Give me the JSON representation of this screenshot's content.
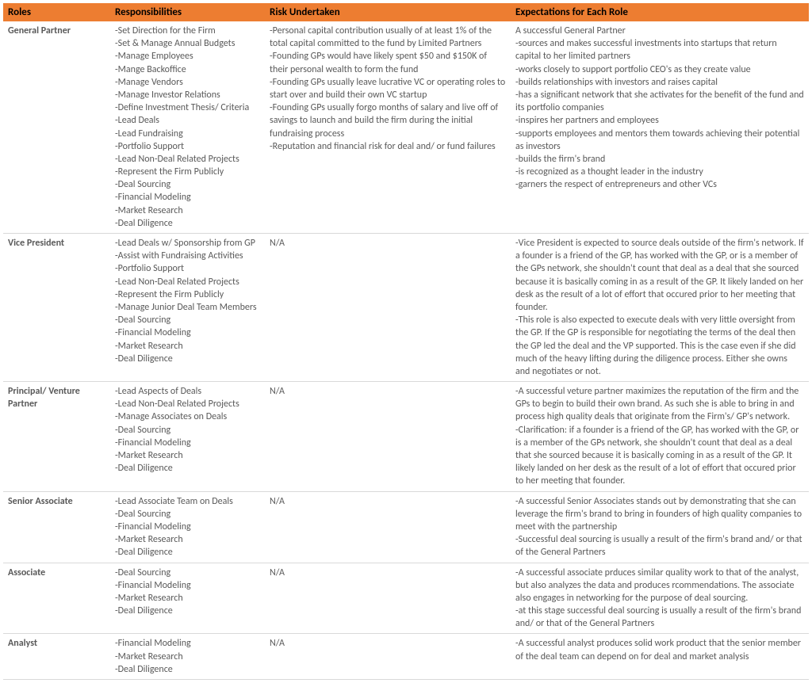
{
  "header_bg": "#ed7d31",
  "header_text_color": "#000000",
  "body_text_color": "#595959",
  "columns": [
    "Roles",
    "Responsibilities",
    "Risk Undertaken",
    "Expectations for Each Role"
  ],
  "rows": [
    {
      "role": "General Partner",
      "responsibilities": [
        "-Set Direction for the Firm",
        "-Set & Manage Annual Budgets",
        "-Manage Employees",
        "-Mange Backoffice",
        "-Manage Vendors",
        "-Manage Investor Relations",
        "-Define Investment Thesis/ Criteria",
        "-Lead Deals",
        "-Lead Fundraising",
        "-Portfolio Support",
        "-Lead Non-Deal Related Projects",
        "-Represent the Firm Publicly",
        "-Deal Sourcing",
        "-Financial Modeling",
        "-Market Research",
        "-Deal Diligence"
      ],
      "risk": [
        "-Personal capital contribution usually of at least 1% of the total capital committed to the fund by Limited Partners",
        "-Founding GPs would have likely spent $50 and $150K of their personal wealth to form the fund",
        "-Founding GPs usually leave lucrative VC or operating roles to start over and build their own VC startup",
        "-Founding GPs usually forgo months of salary and live off of savings to launch and build the firm during the initial fundraising process",
        "-Reputation and financial risk for deal and/ or fund failures"
      ],
      "expectations": [
        "A successful General Partner",
        "-sources and makes successful investments into startups that return capital to her limited partners",
        "-works closely to support portfolio CEO's as they create value",
        "-builds relationships with investors and raises capital",
        "-has a significant network that she activates for the benefit of the fund and its portfolio companies",
        "-inspires her partners and employees",
        "-supports employees and mentors them towards achieving their potential as investors",
        "-builds the firm's brand",
        "-is recognized as a thought leader in the industry",
        "-garners the respect of entrepreneurs and other VCs"
      ]
    },
    {
      "role": "Vice President",
      "responsibilities": [
        "-Lead Deals w/ Sponsorship from GP",
        "-Assist with Fundraising Activities",
        "-Portfolio Support",
        "-Lead Non-Deal Related Projects",
        "-Represent the Firm Publicly",
        "-Manage Junior Deal Team Members",
        "-Deal Sourcing",
        "-Financial Modeling",
        "-Market Research",
        "-Deal Diligence"
      ],
      "risk": [
        "N/A"
      ],
      "expectations": [
        "-Vice President is expected to source deals outside of the firm's network.  If a founder is a friend of the GP, has worked with the GP, or is a member of the GPs network, she shouldn't count that deal as a deal that she sourced because it is basically coming in as a result of the GP.  It likely landed on her desk as the result of a lot of effort that occured prior to her meeting that founder.",
        "-This role is also expected to execute deals with very little oversight from the GP.  If the GP is responsible for negotiating the terms of the deal then the GP led the deal and the VP supported.  This is the case even if she did much of the heavy lifting during the diligence process.  Either she owns and negotiates or not."
      ]
    },
    {
      "role": "Principal/ Venture Partner",
      "responsibilities": [
        "-Lead Aspects of Deals",
        "-Lead Non-Deal Related Projects",
        "-Manage Associates on Deals",
        "-Deal Sourcing",
        "-Financial Modeling",
        "-Market Research",
        "-Deal Diligence"
      ],
      "risk": [
        "N/A"
      ],
      "expectations": [
        "-A successful veture partner maximizes the reputation of the firm and the GPs to begin to build their own brand.  As such she is able to bring in and process high quality deals that originate from the Firm's/ GP's network.",
        "-Clarification: if a founder is a friend of the GP, has worked with the GP, or is a member of the GPs network, she shouldn't count that deal as a deal that she sourced because it is basically coming in as a result of the GP.  It likely landed on her desk as the result of a lot of effort that occured prior to her meeting that founder."
      ]
    },
    {
      "role": "Senior Associate",
      "responsibilities": [
        "-Lead Associate Team on Deals",
        "-Deal Sourcing",
        "-Financial Modeling",
        "-Market Research",
        "-Deal Diligence"
      ],
      "risk": [
        "N/A"
      ],
      "expectations": [
        "-A successful Senior Associates stands out by demonstrating that she can leverage the firm's brand to bring in founders of high quality companies to meet with the partnership",
        "-Successful deal sourcing is usually a result of the firm's brand and/ or that of the General Partners"
      ]
    },
    {
      "role": "Associate",
      "responsibilities": [
        "-Deal Sourcing",
        "-Financial Modeling",
        "-Market Research",
        "-Deal Diligence"
      ],
      "risk": [
        "N/A"
      ],
      "expectations": [
        "-A successful associate prduces similar quality work to that of the analyst, but also analyzes the data and produces rcommendations.  The associate also engages in networking for the purpose of deal sourcing.",
        "-at this stage successful deal sourcing is usually a result of the firm's brand and/ or that of the General Partners"
      ]
    },
    {
      "role": "Analyst",
      "responsibilities": [
        "-Financial Modeling",
        "-Market Research",
        "-Deal Diligence"
      ],
      "risk": [
        "N/A"
      ],
      "expectations": [
        "-A successful analyst produces solid work product that the senior member of the deal team can depend on for deal and market analysis"
      ]
    }
  ]
}
